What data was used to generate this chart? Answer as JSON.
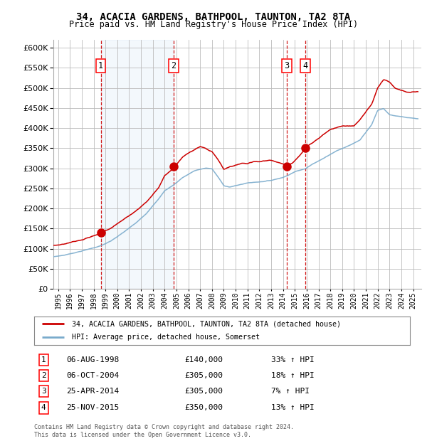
{
  "title1": "34, ACACIA GARDENS, BATHPOOL, TAUNTON, TA2 8TA",
  "title2": "Price paid vs. HM Land Registry's House Price Index (HPI)",
  "ylim": [
    0,
    620000
  ],
  "yticks": [
    0,
    50000,
    100000,
    150000,
    200000,
    250000,
    300000,
    350000,
    400000,
    450000,
    500000,
    550000,
    600000
  ],
  "xlim_start": 1994.6,
  "xlim_end": 2025.7,
  "background_color": "#ffffff",
  "plot_bg_color": "#ffffff",
  "grid_color": "#bbbbbb",
  "shade_color": "#d0e4f7",
  "red_line_color": "#cc0000",
  "blue_line_color": "#7aabcc",
  "sale_marker_color": "#cc0000",
  "dashed_line_color": "#cc0000",
  "transactions": [
    {
      "num": 1,
      "date_x": 1998.6,
      "price": 140000,
      "label": "06-AUG-1998",
      "amount": "£140,000",
      "pct": "33% ↑ HPI"
    },
    {
      "num": 2,
      "date_x": 2004.77,
      "price": 305000,
      "label": "06-OCT-2004",
      "amount": "£305,000",
      "pct": "18% ↑ HPI"
    },
    {
      "num": 3,
      "date_x": 2014.32,
      "price": 305000,
      "label": "25-APR-2014",
      "amount": "£305,000",
      "pct": "7% ↑ HPI"
    },
    {
      "num": 4,
      "date_x": 2015.9,
      "price": 350000,
      "label": "25-NOV-2015",
      "amount": "£350,000",
      "pct": "13% ↑ HPI"
    }
  ],
  "legend_line1": "34, ACACIA GARDENS, BATHPOOL, TAUNTON, TA2 8TA (detached house)",
  "legend_line2": "HPI: Average price, detached house, Somerset",
  "footer1": "Contains HM Land Registry data © Crown copyright and database right 2024.",
  "footer2": "This data is licensed under the Open Government Licence v3.0.",
  "shade_start": 1998.6,
  "shade_end": 2004.77,
  "red_x": [
    1994.6,
    1995.5,
    1997.0,
    1998.0,
    1998.6,
    1999.5,
    2000.5,
    2001.5,
    2002.5,
    2003.5,
    2004.0,
    2004.77,
    2005.5,
    2006.0,
    2007.0,
    2008.0,
    2008.5,
    2009.0,
    2009.5,
    2010.0,
    2010.5,
    2011.0,
    2011.5,
    2012.0,
    2012.5,
    2013.0,
    2013.5,
    2014.0,
    2014.32,
    2014.8,
    2015.0,
    2015.5,
    2015.9,
    2016.3,
    2016.8,
    2017.5,
    2018.0,
    2018.5,
    2019.0,
    2019.5,
    2020.0,
    2020.5,
    2021.0,
    2021.5,
    2022.0,
    2022.5,
    2023.0,
    2023.5,
    2024.0,
    2024.5,
    2025.4
  ],
  "red_y": [
    108000,
    112000,
    125000,
    135000,
    140000,
    155000,
    175000,
    195000,
    220000,
    255000,
    285000,
    305000,
    330000,
    340000,
    355000,
    340000,
    320000,
    295000,
    300000,
    305000,
    310000,
    310000,
    315000,
    315000,
    318000,
    320000,
    315000,
    310000,
    305000,
    315000,
    320000,
    335000,
    350000,
    360000,
    370000,
    385000,
    395000,
    400000,
    405000,
    405000,
    405000,
    420000,
    440000,
    460000,
    500000,
    520000,
    515000,
    500000,
    495000,
    490000,
    490000
  ],
  "blue_x": [
    1994.6,
    1995.5,
    1997.0,
    1998.0,
    1998.6,
    1999.5,
    2000.5,
    2001.5,
    2002.5,
    2003.5,
    2004.0,
    2004.77,
    2005.5,
    2006.5,
    2007.5,
    2008.0,
    2008.5,
    2009.0,
    2009.5,
    2010.0,
    2011.0,
    2012.0,
    2013.0,
    2014.0,
    2014.32,
    2015.0,
    2015.9,
    2016.5,
    2017.5,
    2018.5,
    2019.5,
    2020.5,
    2021.5,
    2022.0,
    2022.5,
    2023.0,
    2024.0,
    2024.5,
    2025.4
  ],
  "blue_y": [
    80000,
    84000,
    95000,
    103000,
    108000,
    120000,
    140000,
    162000,
    190000,
    225000,
    245000,
    260000,
    278000,
    295000,
    302000,
    300000,
    280000,
    258000,
    255000,
    258000,
    265000,
    268000,
    272000,
    280000,
    284000,
    295000,
    302000,
    315000,
    330000,
    348000,
    360000,
    375000,
    415000,
    450000,
    455000,
    440000,
    435000,
    432000,
    428000
  ]
}
